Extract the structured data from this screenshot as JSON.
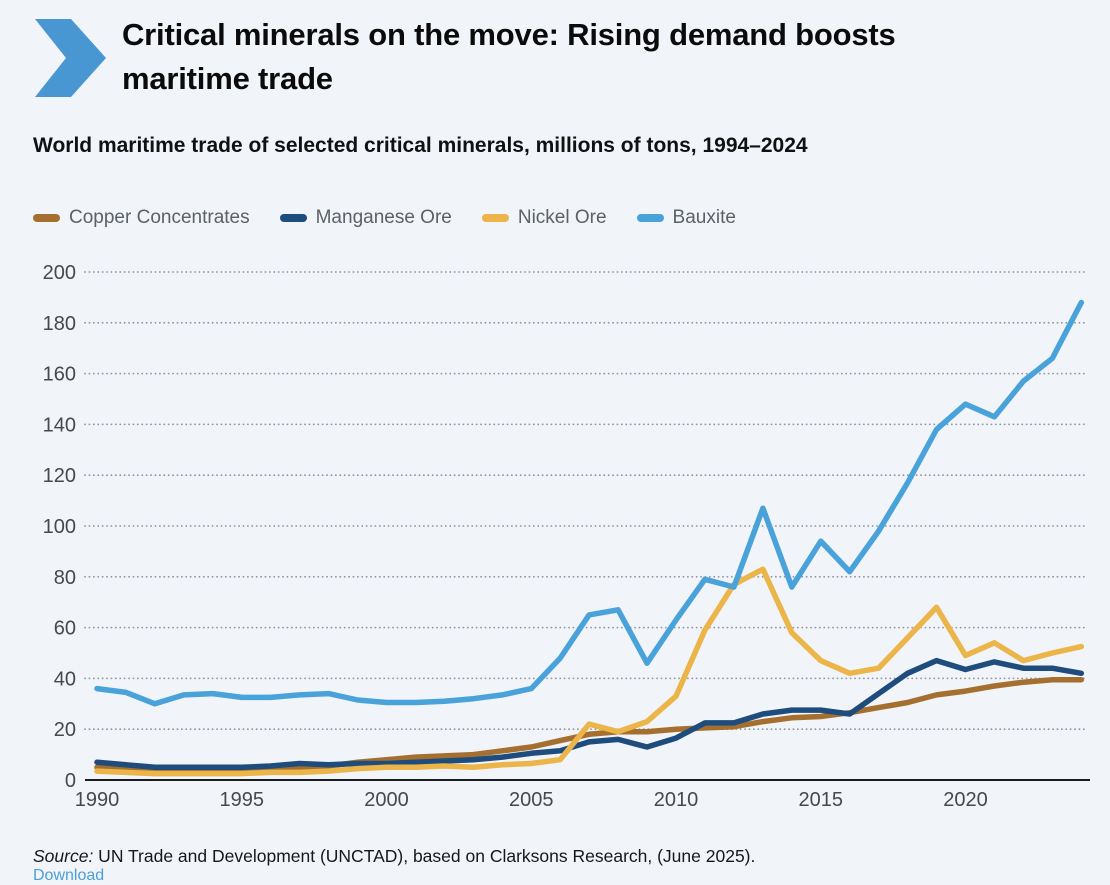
{
  "page": {
    "background": "#f1f4f8"
  },
  "header": {
    "chevron_icon_color": "#4997d2",
    "title_line1": "Critical minerals on the move: Rising demand boosts",
    "title_line2": "maritime trade"
  },
  "subtitle": "World maritime trade of selected critical minerals, millions of tons, 1994–2024",
  "chart_data": {
    "type": "line",
    "title": "World maritime trade of selected critical minerals, millions of tons, 1994–2024",
    "xlabel": "",
    "ylabel": "",
    "xlim": [
      1990,
      2024
    ],
    "ylim": [
      0,
      200
    ],
    "grid": "dotted-horizontal",
    "legend_position": "top-left",
    "x_ticks": [
      1990,
      1995,
      2000,
      2005,
      2010,
      2015,
      2020
    ],
    "y_ticks": [
      0,
      20,
      40,
      60,
      80,
      100,
      120,
      140,
      160,
      180,
      200
    ],
    "x": [
      1990,
      1991,
      1992,
      1993,
      1994,
      1995,
      1996,
      1997,
      1998,
      1999,
      2000,
      2001,
      2002,
      2003,
      2004,
      2005,
      2006,
      2007,
      2008,
      2009,
      2010,
      2011,
      2012,
      2013,
      2014,
      2015,
      2016,
      2017,
      2018,
      2019,
      2020,
      2021,
      2022,
      2023,
      2024
    ],
    "series": [
      {
        "name": "Copper Concentrates",
        "color": "#a5702f",
        "values": [
          5,
          4.5,
          3.5,
          3.5,
          3.5,
          3.5,
          4,
          4.5,
          5.5,
          7,
          8,
          9,
          9.5,
          10,
          11.5,
          13,
          15.5,
          18,
          19,
          19,
          20,
          20.5,
          21,
          23,
          24.5,
          25,
          26.5,
          28.5,
          30.5,
          33.5,
          35,
          37,
          38.5,
          39.5,
          39.5
        ]
      },
      {
        "name": "Manganese Ore",
        "color": "#1e4c7d",
        "values": [
          7,
          6,
          5,
          5,
          5,
          5,
          5.5,
          6.5,
          6,
          6.5,
          6.5,
          7,
          7.5,
          8,
          9,
          10.5,
          11.5,
          15,
          16,
          13,
          16.5,
          22.5,
          22.5,
          26,
          27.5,
          27.5,
          26,
          34,
          42,
          47,
          43.5,
          46.5,
          44,
          44,
          42
        ]
      },
      {
        "name": "Nickel Ore",
        "color": "#ecb54a",
        "values": [
          3.5,
          3,
          2.5,
          2.5,
          2.5,
          2.5,
          3,
          3,
          3.5,
          4.5,
          5,
          5,
          5.5,
          5,
          6,
          6.5,
          8,
          22,
          19,
          23,
          33,
          59,
          77,
          83,
          58,
          47,
          42,
          44,
          56,
          68,
          49,
          54,
          47,
          50,
          52.5
        ]
      },
      {
        "name": "Bauxite",
        "color": "#4aa2da",
        "values": [
          36,
          34.5,
          30,
          33.5,
          34,
          32.5,
          32.5,
          33.5,
          34,
          31.5,
          30.5,
          30.5,
          31,
          32,
          33.5,
          36,
          48,
          65,
          67,
          46,
          63,
          79,
          76,
          107,
          76,
          94,
          82,
          98,
          117,
          138,
          148,
          143,
          157,
          166,
          188
        ]
      }
    ]
  },
  "colors": {
    "grid": "#9298a0",
    "axis": "#1a1d20",
    "tick_label": "#45494d"
  },
  "footer": {
    "source_label": "Source:",
    "source_text": " UN Trade and Development (UNCTAD), based on Clarksons Research, (June 2025).",
    "link_label": "Download",
    "link_color": "#4b9fd9"
  }
}
